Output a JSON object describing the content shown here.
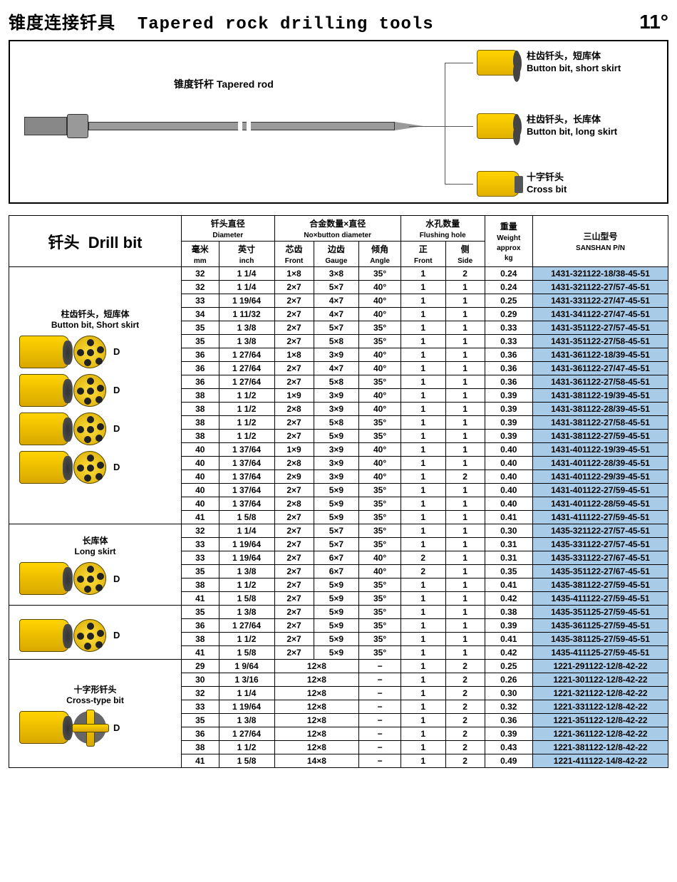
{
  "header": {
    "title_cn": "锥度连接钎具",
    "title_en": "Tapered rock drilling tools",
    "degree": "11°"
  },
  "diagram": {
    "rod_label_cn": "锥度钎杆",
    "rod_label_en": "Tapered rod",
    "bits": [
      {
        "cn": "柱齿钎头，短库体",
        "en": "Button bit, short skirt"
      },
      {
        "cn": "柱齿钎头，长库体",
        "en": "Button bit, long skirt"
      },
      {
        "cn": "十字钎头",
        "en": "Cross bit"
      }
    ]
  },
  "table": {
    "section_title_cn": "钎头",
    "section_title_en": "Drill bit",
    "headers": {
      "diameter": {
        "cn": "钎头直径",
        "en": "Diameter",
        "mm_cn": "毫米",
        "mm_en": "mm",
        "inch_cn": "英寸",
        "inch_en": "inch"
      },
      "buttons": {
        "cn": "合金数量×直径",
        "en": "No×button diameter",
        "front_cn": "芯齿",
        "front_en": "Front",
        "gauge_cn": "边齿",
        "gauge_en": "Gauge",
        "angle_cn": "倾角",
        "angle_en": "Angle"
      },
      "flush": {
        "cn": "水孔数量",
        "en": "Flushing hole",
        "front_cn": "正",
        "front_en": "Front",
        "side_cn": "侧",
        "side_en": "Side"
      },
      "weight": {
        "cn": "重量",
        "en": "Weight",
        "sub": "approx",
        "unit": "kg"
      },
      "pn": {
        "cn": "三山型号",
        "en": "SANSHAN P/N"
      }
    },
    "groups": [
      {
        "label_cn": "柱齿钎头，短库体",
        "label_en": "Button bit, Short skirt",
        "images": 4,
        "face": "button",
        "rows": [
          [
            "32",
            "1 1/4",
            "1×8",
            "3×8",
            "35°",
            "1",
            "2",
            "0.24",
            "1431-321122-18/38-45-51"
          ],
          [
            "32",
            "1 1/4",
            "2×7",
            "5×7",
            "40°",
            "1",
            "1",
            "0.24",
            "1431-321122-27/57-45-51"
          ],
          [
            "33",
            "1 19/64",
            "2×7",
            "4×7",
            "40°",
            "1",
            "1",
            "0.25",
            "1431-331122-27/47-45-51"
          ],
          [
            "34",
            "1 11/32",
            "2×7",
            "4×7",
            "40°",
            "1",
            "1",
            "0.29",
            "1431-341122-27/47-45-51"
          ],
          [
            "35",
            "1 3/8",
            "2×7",
            "5×7",
            "35°",
            "1",
            "1",
            "0.33",
            "1431-351122-27/57-45-51"
          ],
          [
            "35",
            "1 3/8",
            "2×7",
            "5×8",
            "35°",
            "1",
            "1",
            "0.33",
            "1431-351122-27/58-45-51"
          ],
          [
            "36",
            "1 27/64",
            "1×8",
            "3×9",
            "40°",
            "1",
            "1",
            "0.36",
            "1431-361122-18/39-45-51"
          ],
          [
            "36",
            "1 27/64",
            "2×7",
            "4×7",
            "40°",
            "1",
            "1",
            "0.36",
            "1431-361122-27/47-45-51"
          ],
          [
            "36",
            "1 27/64",
            "2×7",
            "5×8",
            "35°",
            "1",
            "1",
            "0.36",
            "1431-361122-27/58-45-51"
          ],
          [
            "38",
            "1 1/2",
            "1×9",
            "3×9",
            "40°",
            "1",
            "1",
            "0.39",
            "1431-381122-19/39-45-51"
          ],
          [
            "38",
            "1 1/2",
            "2×8",
            "3×9",
            "40°",
            "1",
            "1",
            "0.39",
            "1431-381122-28/39-45-51"
          ],
          [
            "38",
            "1 1/2",
            "2×7",
            "5×8",
            "35°",
            "1",
            "1",
            "0.39",
            "1431-381122-27/58-45-51"
          ],
          [
            "38",
            "1 1/2",
            "2×7",
            "5×9",
            "35°",
            "1",
            "1",
            "0.39",
            "1431-381122-27/59-45-51"
          ],
          [
            "40",
            "1 37/64",
            "1×9",
            "3×9",
            "40°",
            "1",
            "1",
            "0.40",
            "1431-401122-19/39-45-51"
          ],
          [
            "40",
            "1 37/64",
            "2×8",
            "3×9",
            "40°",
            "1",
            "1",
            "0.40",
            "1431-401122-28/39-45-51"
          ],
          [
            "40",
            "1 37/64",
            "2×9",
            "3×9",
            "40°",
            "1",
            "2",
            "0.40",
            "1431-401122-29/39-45-51"
          ],
          [
            "40",
            "1 37/64",
            "2×7",
            "5×9",
            "35°",
            "1",
            "1",
            "0.40",
            "1431-401122-27/59-45-51"
          ],
          [
            "40",
            "1 37/64",
            "2×8",
            "5×9",
            "35°",
            "1",
            "1",
            "0.40",
            "1431-401122-28/59-45-51"
          ],
          [
            "41",
            "1 5/8",
            "2×7",
            "5×9",
            "35°",
            "1",
            "1",
            "0.41",
            "1431-411122-27/59-45-51"
          ]
        ]
      },
      {
        "label_cn": "长库体",
        "label_en": "Long skirt",
        "images": 1,
        "face": "button",
        "rows": [
          [
            "32",
            "1 1/4",
            "2×7",
            "5×7",
            "35°",
            "1",
            "1",
            "0.30",
            "1435-321122-27/57-45-51"
          ],
          [
            "33",
            "1 19/64",
            "2×7",
            "5×7",
            "35°",
            "1",
            "1",
            "0.31",
            "1435-331122-27/57-45-51"
          ],
          [
            "33",
            "1 19/64",
            "2×7",
            "6×7",
            "40°",
            "2",
            "1",
            "0.31",
            "1435-331122-27/67-45-51"
          ],
          [
            "35",
            "1 3/8",
            "2×7",
            "6×7",
            "40°",
            "2",
            "1",
            "0.35",
            "1435-351122-27/67-45-51"
          ],
          [
            "38",
            "1 1/2",
            "2×7",
            "5×9",
            "35°",
            "1",
            "1",
            "0.41",
            "1435-381122-27/59-45-51"
          ],
          [
            "41",
            "1 5/8",
            "2×7",
            "5×9",
            "35°",
            "1",
            "1",
            "0.42",
            "1435-411122-27/59-45-51"
          ]
        ]
      },
      {
        "label_cn": "",
        "label_en": "",
        "images": 1,
        "face": "button",
        "rows": [
          [
            "35",
            "1 3/8",
            "2×7",
            "5×9",
            "35°",
            "1",
            "1",
            "0.38",
            "1435-351125-27/59-45-51"
          ],
          [
            "36",
            "1 27/64",
            "2×7",
            "5×9",
            "35°",
            "1",
            "1",
            "0.39",
            "1435-361125-27/59-45-51"
          ],
          [
            "38",
            "1 1/2",
            "2×7",
            "5×9",
            "35°",
            "1",
            "1",
            "0.41",
            "1435-381125-27/59-45-51"
          ],
          [
            "41",
            "1 5/8",
            "2×7",
            "5×9",
            "35°",
            "1",
            "1",
            "0.42",
            "1435-411125-27/59-45-51"
          ]
        ]
      },
      {
        "label_cn": "十字形钎头",
        "label_en": "Cross-type bit",
        "images": 1,
        "face": "cross",
        "merged_buttons": true,
        "rows": [
          [
            "29",
            "1  9/64",
            "12×8",
            "",
            "−",
            "1",
            "2",
            "0.25",
            "1221-291122-12/8-42-22"
          ],
          [
            "30",
            "1  3/16",
            "12×8",
            "",
            "−",
            "1",
            "2",
            "0.26",
            "1221-301122-12/8-42-22"
          ],
          [
            "32",
            "1 1/4",
            "12×8",
            "",
            "−",
            "1",
            "2",
            "0.30",
            "1221-321122-12/8-42-22"
          ],
          [
            "33",
            "1 19/64",
            "12×8",
            "",
            "−",
            "1",
            "2",
            "0.32",
            "1221-331122-12/8-42-22"
          ],
          [
            "35",
            "1 3/8",
            "12×8",
            "",
            "−",
            "1",
            "2",
            "0.36",
            "1221-351122-12/8-42-22"
          ],
          [
            "36",
            "1 27/64",
            "12×8",
            "",
            "−",
            "1",
            "2",
            "0.39",
            "1221-361122-12/8-42-22"
          ],
          [
            "38",
            "1 1/2",
            "12×8",
            "",
            "−",
            "1",
            "2",
            "0.43",
            "1221-381122-12/8-42-22"
          ],
          [
            "41",
            "1 5/8",
            "14×8",
            "",
            "−",
            "1",
            "2",
            "0.49",
            "1221-411122-14/8-42-22"
          ]
        ]
      }
    ]
  },
  "style": {
    "pn_bg": "#a8cce8",
    "border": "#000000",
    "bit_yellow_top": "#ffd400",
    "bit_yellow_bot": "#d8a800"
  }
}
